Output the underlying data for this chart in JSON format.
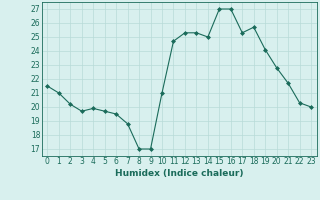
{
  "x": [
    0,
    1,
    2,
    3,
    4,
    5,
    6,
    7,
    8,
    9,
    10,
    11,
    12,
    13,
    14,
    15,
    16,
    17,
    18,
    19,
    20,
    21,
    22,
    23
  ],
  "y": [
    21.5,
    21.0,
    20.2,
    19.7,
    19.9,
    19.7,
    19.5,
    18.8,
    17.0,
    17.0,
    21.0,
    24.7,
    25.3,
    25.3,
    25.0,
    27.0,
    27.0,
    25.3,
    25.7,
    24.1,
    22.8,
    21.7,
    20.3,
    20.0
  ],
  "line_color": "#1a6b5a",
  "marker": "D",
  "marker_size": 2,
  "bg_color": "#d8f0ee",
  "grid_color": "#b8dbd8",
  "xlabel": "Humidex (Indice chaleur)",
  "ylabel_ticks": [
    17,
    18,
    19,
    20,
    21,
    22,
    23,
    24,
    25,
    26,
    27
  ],
  "xlim": [
    -0.5,
    23.5
  ],
  "ylim": [
    16.5,
    27.5
  ],
  "tick_fontsize": 5.5,
  "xlabel_fontsize": 6.5
}
